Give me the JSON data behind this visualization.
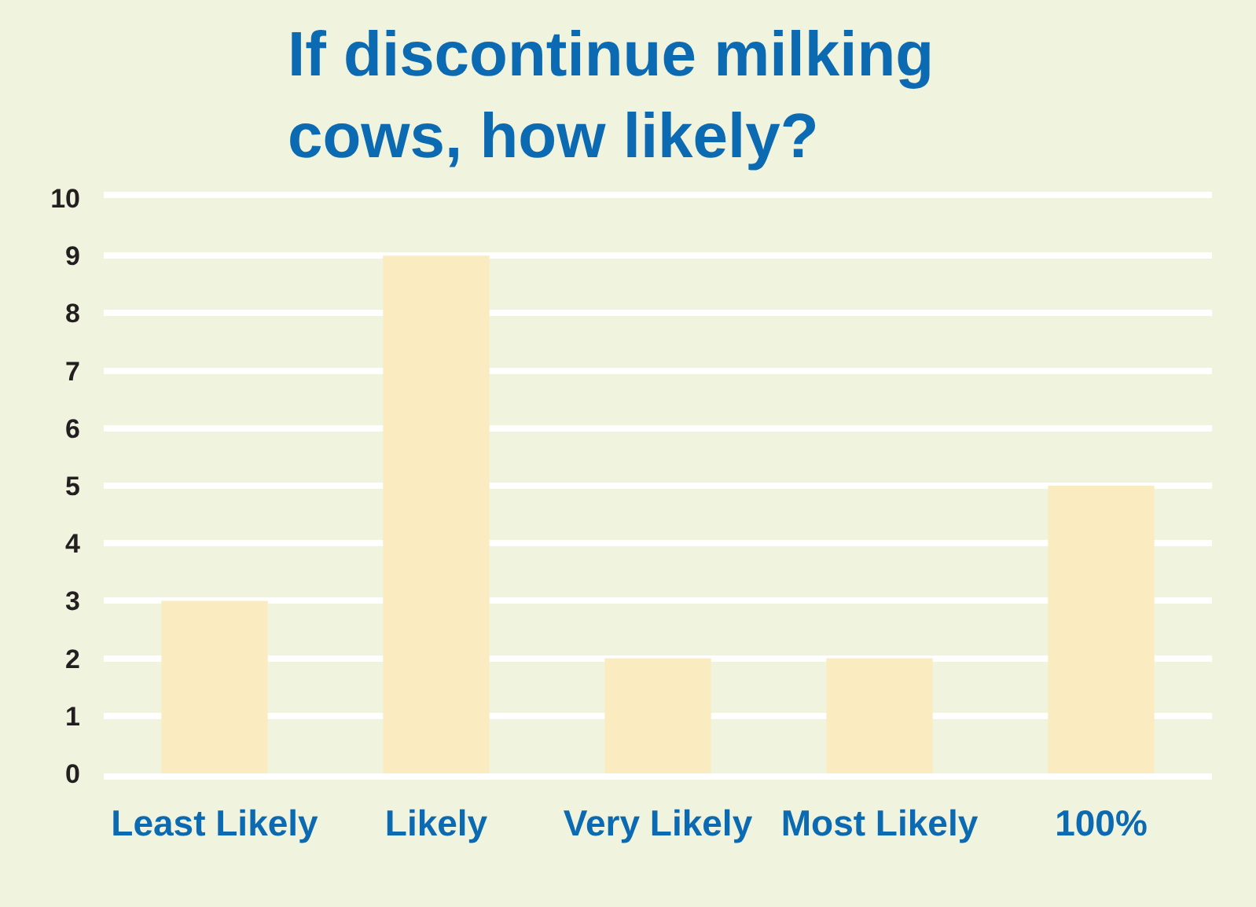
{
  "chart_data": {
    "type": "bar",
    "title": "If discontinue milking cows, how likely?",
    "categories": [
      "Least Likely",
      "Likely",
      "Very Likely",
      "Most Likely",
      "100%"
    ],
    "values": [
      3,
      9,
      2,
      2,
      5
    ],
    "color": "#faecc0",
    "ylim": [
      0,
      10
    ],
    "yticks": [
      0,
      1,
      2,
      3,
      4,
      5,
      6,
      7,
      8,
      9,
      10
    ],
    "grid": "y"
  }
}
